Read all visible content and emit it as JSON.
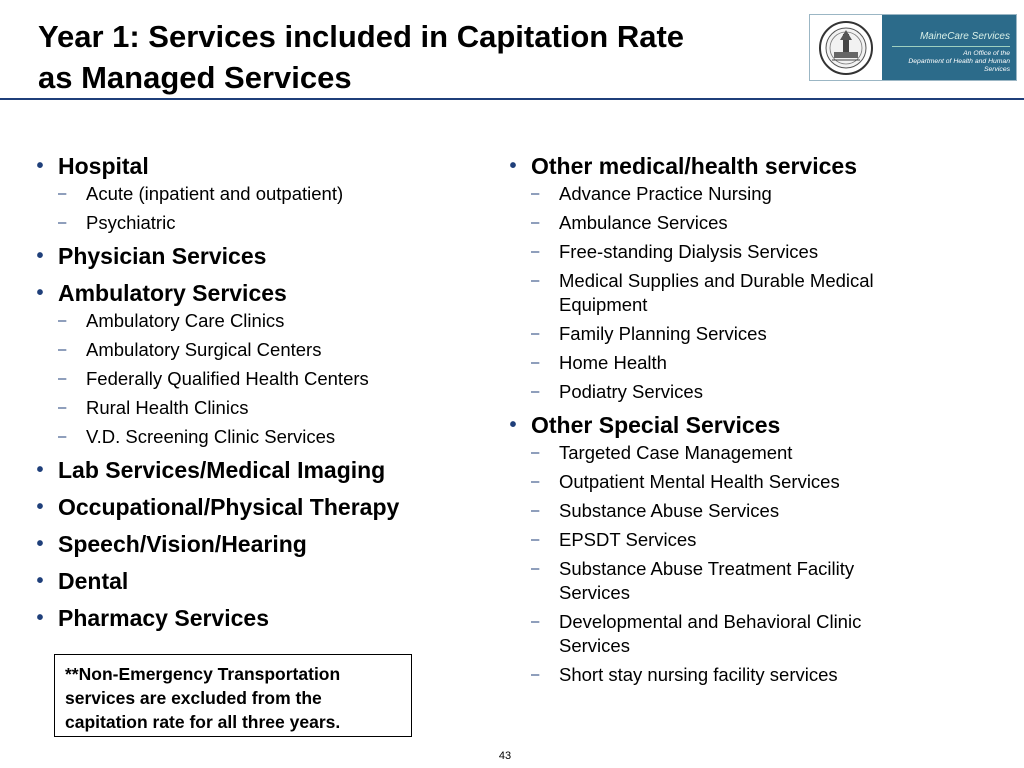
{
  "slide": {
    "title_line1": "Year 1: Services included in Capitation Rate",
    "title_line2": "as Managed Services",
    "page_number": "43"
  },
  "logo": {
    "line1": "MaineCare Services",
    "line2": "An Office of the",
    "line3": "Department of Health and Human Services"
  },
  "left_column": [
    {
      "label": "Hospital",
      "subs": [
        "Acute (inpatient and outpatient)",
        "Psychiatric"
      ]
    },
    {
      "label": "Physician Services",
      "subs": []
    },
    {
      "label": "Ambulatory Services",
      "subs": [
        "Ambulatory Care Clinics",
        "Ambulatory Surgical Centers",
        "Federally Qualified Health Centers",
        "Rural Health Clinics",
        "V.D. Screening Clinic Services"
      ]
    },
    {
      "label": "Lab Services/Medical Imaging",
      "subs": []
    },
    {
      "label": "Occupational/Physical Therapy",
      "subs": []
    },
    {
      "label": "Speech/Vision/Hearing",
      "subs": []
    },
    {
      "label": "Dental",
      "subs": []
    },
    {
      "label": "Pharmacy Services",
      "subs": []
    }
  ],
  "right_column": [
    {
      "label": "Other medical/health services",
      "subs": [
        "Advance Practice Nursing",
        "Ambulance Services",
        "Free-standing Dialysis Services",
        "Medical Supplies and Durable Medical Equipment",
        "Family Planning Services",
        "Home Health",
        "Podiatry Services"
      ]
    },
    {
      "label": "Other Special Services",
      "subs": [
        "Targeted Case Management",
        "Outpatient Mental Health Services",
        "Substance Abuse Services",
        "EPSDT Services",
        "Substance Abuse Treatment Facility Services",
        "Developmental and Behavioral Clinic Services",
        "Short stay nursing facility services"
      ]
    }
  ],
  "note": "**Non-Emergency Transportation services are excluded from the capitation rate for all three years.",
  "icons": {
    "bullet": "•",
    "dash": "–"
  },
  "colors": {
    "accent": "#1f3f7a",
    "logo_bg": "#2c6b8a"
  }
}
